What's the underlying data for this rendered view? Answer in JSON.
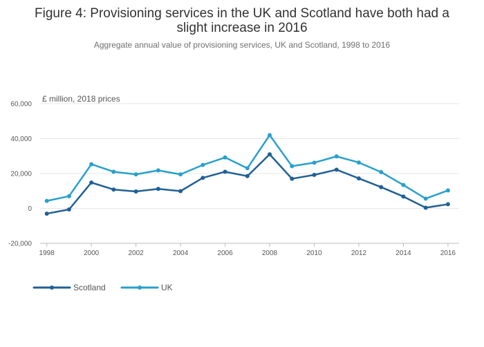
{
  "chart_data": {
    "type": "line",
    "title": "Figure 4: Provisioning services in the UK and Scotland have both had a slight increase in 2016",
    "title_lines": [
      "Figure 4: Provisioning services in the UK and Scotland have both had a",
      "slight increase in 2016"
    ],
    "subtitle": "Aggregate annual value of provisioning services, UK and Scotland, 1998 to 2016",
    "unit_label": "£ million, 2018 prices",
    "xlabel": "",
    "ylabel": "",
    "x": [
      1998,
      1999,
      2000,
      2001,
      2002,
      2003,
      2004,
      2005,
      2006,
      2007,
      2008,
      2009,
      2010,
      2011,
      2012,
      2013,
      2014,
      2015,
      2016
    ],
    "x_ticks": [
      1998,
      2000,
      2002,
      2004,
      2006,
      2008,
      2010,
      2012,
      2014,
      2016
    ],
    "xlim": [
      1997.7,
      2016.5
    ],
    "ylim": [
      -20000,
      60000
    ],
    "y_ticks": [
      -20000,
      0,
      20000,
      40000,
      60000
    ],
    "y_tick_labels": [
      "-20,000",
      "0",
      "20,000",
      "40,000",
      "60,000"
    ],
    "grid": true,
    "legend_position": "bottom-left",
    "series": [
      {
        "name": "Scotland",
        "color": "#206095",
        "values": [
          -3000,
          -600,
          14800,
          10800,
          9700,
          11200,
          9900,
          17500,
          21000,
          18500,
          31000,
          17000,
          19200,
          22200,
          17200,
          12200,
          6800,
          400,
          2400
        ]
      },
      {
        "name": "UK",
        "color": "#27a0cc",
        "values": [
          4300,
          7000,
          25300,
          21000,
          19500,
          21800,
          19500,
          24900,
          29200,
          23000,
          42000,
          24200,
          26200,
          29800,
          26300,
          20800,
          13400,
          5600,
          10300
        ]
      }
    ]
  }
}
